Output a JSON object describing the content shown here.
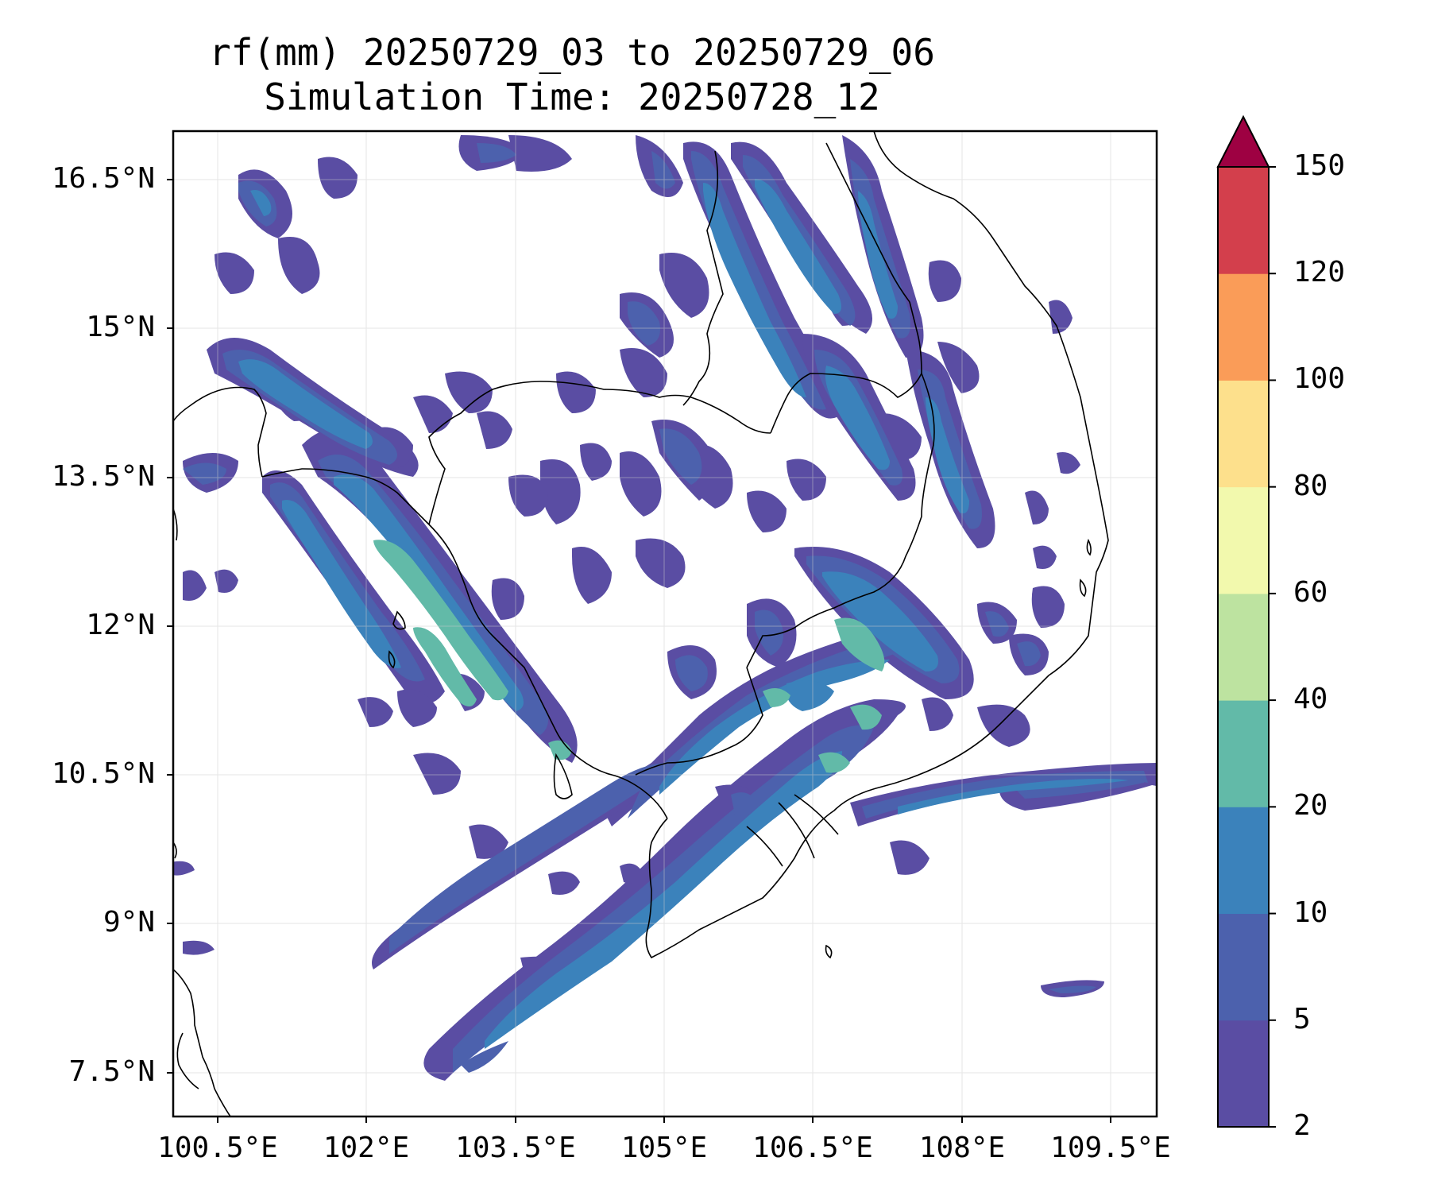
{
  "title": {
    "line1": "rf(mm) 20250729_03 to 20250729_06",
    "line2": "Simulation Time: 20250728_12"
  },
  "map": {
    "lat_ticks": [
      "16.5°N",
      "15°N",
      "13.5°N",
      "12°N",
      "10.5°N",
      "9°N",
      "7.5°N"
    ],
    "lon_ticks": [
      "100.5°E",
      "102°E",
      "103.5°E",
      "105°E",
      "106.5°E",
      "108°E",
      "109.5°E"
    ],
    "lat_range": [
      7.05,
      16.95
    ],
    "lon_range": [
      100.5,
      110.4
    ],
    "grid": true,
    "coastline": true
  },
  "colorbar": {
    "levels": [
      "2",
      "5",
      "10",
      "20",
      "40",
      "60",
      "80",
      "100",
      "120",
      "150"
    ],
    "colors": [
      "#5a4da3",
      "#4c61ad",
      "#3b82bb",
      "#62baa8",
      "#bde3a0",
      "#f2f9ad",
      "#fde08c",
      "#fa9c58",
      "#d33f4c"
    ],
    "extend_color": "#9e0142",
    "extend": "max"
  },
  "chart_data": {
    "type": "heatmap",
    "title": "rf(mm) 20250729_03 to 20250729_06",
    "subtitle": "Simulation Time: 20250728_12",
    "x_ticks": [
      "100.5°E",
      "102°E",
      "103.5°E",
      "105°E",
      "106.5°E",
      "108°E",
      "109.5°E"
    ],
    "y_ticks": [
      "16.5°N",
      "15°N",
      "13.5°N",
      "12°N",
      "10.5°N",
      "9°N",
      "7.5°N"
    ],
    "contour_levels": [
      2,
      5,
      10,
      20,
      40,
      60,
      80,
      100,
      120,
      150
    ]
  }
}
